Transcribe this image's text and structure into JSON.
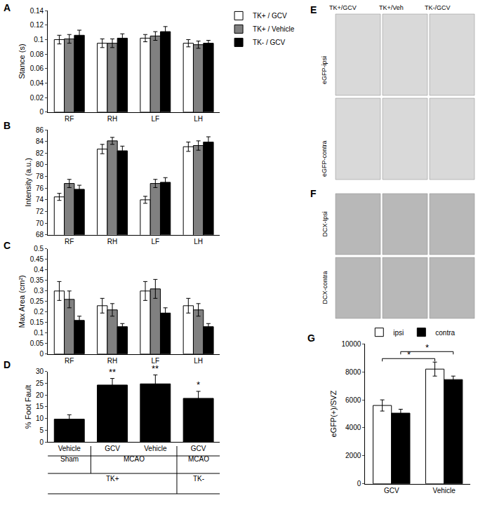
{
  "chart_data": [
    {
      "panel": "A",
      "type": "bar",
      "y_label": "Stance (s)",
      "categories": [
        "RF",
        "RH",
        "LF",
        "LH"
      ],
      "series": [
        {
          "name": "TK+ / GCV",
          "color": "#ffffff",
          "values": [
            0.1,
            0.095,
            0.102,
            0.095
          ],
          "errors": [
            0.006,
            0.006,
            0.005,
            0.005
          ]
        },
        {
          "name": "TK+ / Vehicle",
          "color": "#808080",
          "values": [
            0.101,
            0.095,
            0.105,
            0.093
          ],
          "errors": [
            0.006,
            0.006,
            0.006,
            0.005
          ]
        },
        {
          "name": "TK- / GCV",
          "color": "#000000",
          "values": [
            0.106,
            0.102,
            0.111,
            0.095
          ],
          "errors": [
            0.007,
            0.006,
            0.007,
            0.004
          ]
        }
      ],
      "ylim": [
        0,
        0.14
      ],
      "yticks": [
        0,
        0.02,
        0.04,
        0.06,
        0.08,
        0.1,
        0.12,
        0.14
      ],
      "legend": "top right"
    },
    {
      "panel": "B",
      "type": "bar",
      "y_label": "Intensity (a.u.)",
      "categories": [
        "RF",
        "RH",
        "LF",
        "LH"
      ],
      "series": [
        {
          "name": "TK+ / GCV",
          "color": "#ffffff",
          "values": [
            74.5,
            82.7,
            74.0,
            83.1
          ],
          "errors": [
            0.6,
            0.8,
            0.6,
            0.8
          ]
        },
        {
          "name": "TK+ / Vehicle",
          "color": "#808080",
          "values": [
            76.8,
            84.1,
            76.8,
            83.3
          ],
          "errors": [
            0.7,
            0.6,
            0.7,
            0.8
          ]
        },
        {
          "name": "TK- / GCV",
          "color": "#000000",
          "values": [
            75.8,
            82.4,
            77.0,
            83.9
          ],
          "errors": [
            0.7,
            0.8,
            0.8,
            0.9
          ]
        }
      ],
      "ylim": [
        68,
        86
      ],
      "yticks": [
        68,
        70,
        72,
        74,
        76,
        78,
        80,
        82,
        84,
        86
      ]
    },
    {
      "panel": "C",
      "type": "bar",
      "y_label": "Max Area (cm²)",
      "categories": [
        "RF",
        "RH",
        "LF",
        "LH"
      ],
      "series": [
        {
          "name": "TK+ / GCV",
          "color": "#ffffff",
          "values": [
            0.3,
            0.23,
            0.3,
            0.23
          ],
          "errors": [
            0.045,
            0.035,
            0.045,
            0.035
          ]
        },
        {
          "name": "TK+ / Vehicle",
          "color": "#808080",
          "values": [
            0.26,
            0.21,
            0.31,
            0.21
          ],
          "errors": [
            0.04,
            0.03,
            0.045,
            0.03
          ]
        },
        {
          "name": "TK- / GCV",
          "color": "#000000",
          "values": [
            0.16,
            0.13,
            0.195,
            0.13
          ],
          "errors": [
            0.02,
            0.015,
            0.025,
            0.015
          ]
        }
      ],
      "ylim": [
        0,
        0.5
      ],
      "yticks": [
        0,
        0.05,
        0.1,
        0.15,
        0.2,
        0.25,
        0.3,
        0.35,
        0.4,
        0.45,
        0.5
      ]
    },
    {
      "panel": "D",
      "type": "bar",
      "y_label": "% Foot Fault",
      "categories": [
        "Vehicle",
        "GCV",
        "Vehicle",
        "GCV"
      ],
      "values": [
        9.7,
        24.3,
        24.8,
        18.6
      ],
      "errors": [
        1.9,
        2.8,
        3.8,
        3.0
      ],
      "significance": [
        null,
        "**",
        "**",
        "*"
      ],
      "color": "#000000",
      "group_rows": [
        [
          {
            "text": "Sham",
            "from": 0,
            "to": 0
          },
          {
            "text": "MCAO",
            "from": 1,
            "to": 2
          },
          {
            "text": "MCAO",
            "from": 3,
            "to": 3
          }
        ],
        [
          {
            "text": "TK+",
            "from": 0,
            "to": 2
          },
          {
            "text": "TK-",
            "from": 3,
            "to": 3
          }
        ]
      ],
      "ylim": [
        0,
        30
      ],
      "yticks": [
        0,
        5,
        10,
        15,
        20,
        25,
        30
      ]
    },
    {
      "panel": "G",
      "type": "bar",
      "y_label": "eGFP(+)/SVZ",
      "categories": [
        "GCV",
        "Vehicle"
      ],
      "series": [
        {
          "name": "ipsi",
          "color": "#ffffff",
          "values": [
            5600,
            8200
          ],
          "errors": [
            400,
            500
          ]
        },
        {
          "name": "contra",
          "color": "#000000",
          "values": [
            5050,
            7450
          ],
          "errors": [
            280,
            250
          ]
        }
      ],
      "brackets": [
        {
          "text": "*",
          "series": "ipsi",
          "from": 0,
          "to": 1,
          "y": 8950
        },
        {
          "text": "*",
          "series": "contra",
          "from": 0,
          "to": 1,
          "y": 9450
        }
      ],
      "ylim": [
        0,
        10000
      ],
      "yticks": [
        0,
        2000,
        4000,
        6000,
        8000,
        10000
      ],
      "legend": "top left"
    }
  ],
  "image_panels": [
    {
      "panel": "E",
      "columns": [
        "TK+/GCV",
        "TK+/Veh",
        "TK-/GCV"
      ],
      "rows": [
        "eGFP-ipsi",
        "eGFP-contra"
      ]
    },
    {
      "panel": "F",
      "rows": [
        "DCX-Ipsi",
        "DCX-contra"
      ]
    }
  ]
}
